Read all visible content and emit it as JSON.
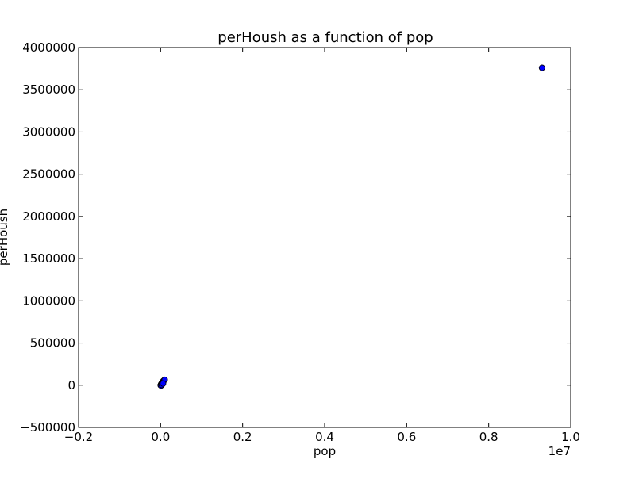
{
  "chart_data": {
    "type": "scatter",
    "title": "perHoush as a function of pop",
    "xlabel": "pop",
    "ylabel": "perHoush",
    "x_offset_label": "1e7",
    "xlim": [
      -0.2,
      1.0
    ],
    "ylim": [
      -500000,
      4000000
    ],
    "grid": false,
    "xticks": [
      -0.2,
      0.0,
      0.2,
      0.4,
      0.6,
      0.8,
      1.0
    ],
    "xtick_labels": [
      "−0.2",
      "0.0",
      "0.2",
      "0.4",
      "0.6",
      "0.8",
      "1.0"
    ],
    "yticks": [
      -500000,
      0,
      500000,
      1000000,
      1500000,
      2000000,
      2500000,
      3000000,
      3500000,
      4000000
    ],
    "ytick_labels": [
      "−500000",
      "0",
      "500000",
      "1000000",
      "1500000",
      "2000000",
      "2500000",
      "3000000",
      "3500000",
      "4000000"
    ],
    "marker_color": "#0000ff",
    "marker_edge_color": "#000000",
    "series": [
      {
        "x": [
          0.0,
          0.001,
          0.002,
          0.003,
          0.004,
          0.005,
          0.006,
          0.007,
          0.008,
          0.009,
          0.0095,
          0.01,
          0.001,
          0.003,
          0.006
        ],
        "y": [
          0,
          10000,
          18000,
          25000,
          32000,
          40000,
          47000,
          52000,
          56000,
          60000,
          63000,
          65000,
          -5000,
          5000,
          20000
        ]
      },
      {
        "x": [
          0.93
        ],
        "y": [
          3760000
        ]
      }
    ]
  }
}
